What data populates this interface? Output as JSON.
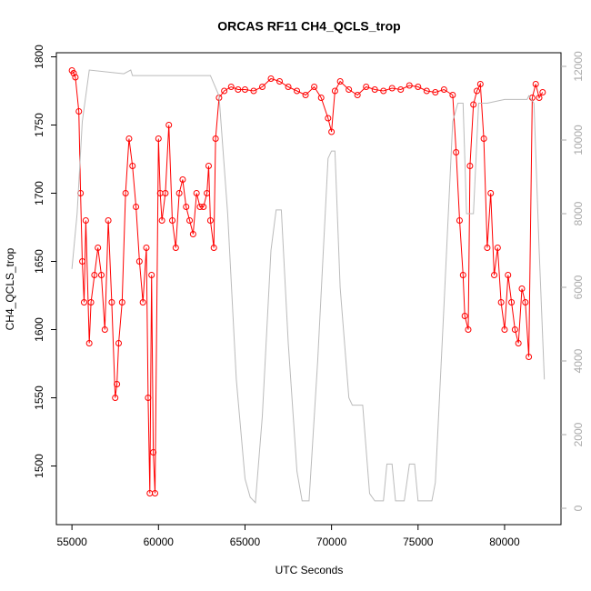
{
  "chart_data": {
    "type": "line",
    "title": "ORCAS RF11 CH4_QCLS_trop",
    "xlabel": "UTC Seconds",
    "ylabel": "CH4_QCLS_trop",
    "xlim": [
      54100,
      83260
    ],
    "ylim": [
      1457,
      1803
    ],
    "y2lim": [
      -444,
      12370
    ],
    "xticks": [
      55000,
      60000,
      65000,
      70000,
      75000,
      80000
    ],
    "yticks": [
      1500,
      1550,
      1600,
      1650,
      1700,
      1750,
      1800
    ],
    "y2ticks": [
      0,
      2000,
      4000,
      6000,
      8000,
      10000,
      12000
    ],
    "series": [
      {
        "color": "#ff0000",
        "markers": true,
        "x": [
          55000,
          55100,
          55200,
          55400,
          55500,
          55600,
          55700,
          55800,
          56000,
          56100,
          56300,
          56500,
          56700,
          56900,
          57100,
          57300,
          57500,
          57600,
          57700,
          57900,
          58100,
          58300,
          58500,
          58700,
          58900,
          59100,
          59300,
          59400,
          59500,
          59600,
          59700,
          59800,
          60000,
          60100,
          60200,
          60400,
          60600,
          60800,
          61000,
          61200,
          61400,
          61600,
          61800,
          62000,
          62200,
          62400,
          62600,
          62800,
          62900,
          63000,
          63200,
          63300,
          63500,
          63800,
          64200,
          64600,
          65000,
          65500,
          66000,
          66500,
          67000,
          67500,
          68000,
          68500,
          69000,
          69400,
          69800,
          70000,
          70200,
          70500,
          71000,
          71500,
          72000,
          72500,
          73000,
          73500,
          74000,
          74500,
          75000,
          75500,
          76000,
          76500,
          77000,
          77200,
          77400,
          77600,
          77700,
          77900,
          78000,
          78200,
          78400,
          78600,
          78800,
          79000,
          79200,
          79400,
          79600,
          79800,
          80000,
          80200,
          80400,
          80600,
          80800,
          81000,
          81200,
          81400,
          81600,
          81800,
          82000,
          82200
        ],
        "values": [
          1790,
          1788,
          1785,
          1760,
          1700,
          1650,
          1620,
          1680,
          1590,
          1620,
          1640,
          1660,
          1640,
          1600,
          1680,
          1620,
          1550,
          1560,
          1590,
          1620,
          1700,
          1740,
          1720,
          1690,
          1650,
          1620,
          1660,
          1550,
          1480,
          1640,
          1510,
          1480,
          1740,
          1700,
          1680,
          1700,
          1750,
          1680,
          1660,
          1700,
          1710,
          1690,
          1680,
          1670,
          1700,
          1690,
          1690,
          1700,
          1720,
          1680,
          1660,
          1740,
          1770,
          1775,
          1778,
          1776,
          1776,
          1775,
          1778,
          1784,
          1782,
          1778,
          1775,
          1772,
          1778,
          1770,
          1755,
          1745,
          1775,
          1782,
          1776,
          1772,
          1778,
          1776,
          1775,
          1777,
          1776,
          1779,
          1778,
          1775,
          1774,
          1776,
          1772,
          1730,
          1680,
          1640,
          1610,
          1600,
          1720,
          1765,
          1775,
          1780,
          1740,
          1660,
          1700,
          1640,
          1660,
          1620,
          1600,
          1640,
          1620,
          1600,
          1590,
          1630,
          1620,
          1580,
          1770,
          1780,
          1770,
          1774
        ]
      },
      {
        "color": "#bbbbbb",
        "axis": "y2",
        "x": [
          55000,
          55300,
          55600,
          56000,
          58000,
          58400,
          58500,
          63000,
          63500,
          64000,
          64500,
          65000,
          65300,
          65600,
          66000,
          66500,
          66800,
          67100,
          67500,
          68000,
          68300,
          68700,
          69200,
          69800,
          70000,
          70200,
          70500,
          71000,
          71200,
          71800,
          72200,
          72500,
          73000,
          73200,
          73500,
          73700,
          74200,
          74500,
          74800,
          75000,
          75800,
          76000,
          76500,
          77000,
          77300,
          77600,
          77800,
          78200,
          78500,
          78700,
          79000,
          80000,
          81300,
          81400,
          81700,
          82000,
          82300
        ],
        "values": [
          6500,
          8000,
          10500,
          11900,
          11800,
          11900,
          11750,
          11750,
          11200,
          8000,
          3500,
          800,
          300,
          150,
          2500,
          7000,
          8100,
          8100,
          4500,
          1000,
          200,
          200,
          4000,
          9500,
          9700,
          9700,
          6000,
          3000,
          2800,
          2800,
          400,
          200,
          200,
          1200,
          1200,
          200,
          200,
          1200,
          1200,
          200,
          200,
          700,
          5500,
          10500,
          11000,
          11000,
          8000,
          8000,
          11000,
          11000,
          11000,
          11100,
          11100,
          11200,
          11000,
          7000,
          3500
        ]
      }
    ]
  }
}
